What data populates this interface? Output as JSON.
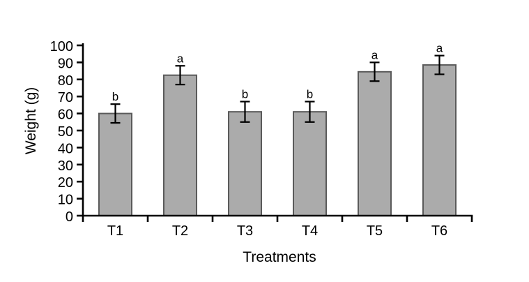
{
  "chart_data": {
    "type": "bar",
    "title": "",
    "categories": [
      "T1",
      "T2",
      "T3",
      "T4",
      "T5",
      "T6"
    ],
    "values": [
      60,
      82.5,
      61,
      61,
      84.5,
      88.5
    ],
    "errors": [
      5.5,
      5.5,
      6,
      6,
      5.5,
      5.5
    ],
    "significance_letters": [
      "b",
      "a",
      "b",
      "b",
      "a",
      "a"
    ],
    "xlabel": "Treatments",
    "ylabel": "Weight (g)",
    "ylim": [
      0,
      100
    ],
    "yticks": [
      0,
      10,
      20,
      30,
      40,
      50,
      60,
      70,
      80,
      90,
      100
    ],
    "grid": false,
    "legend": "none",
    "colors": {
      "bar_fill": "#ababab",
      "bar_border": "#5a5a5a",
      "axis": "#000000",
      "error_bar": "#000000",
      "text": "#000000",
      "background": "#ffffff"
    }
  }
}
